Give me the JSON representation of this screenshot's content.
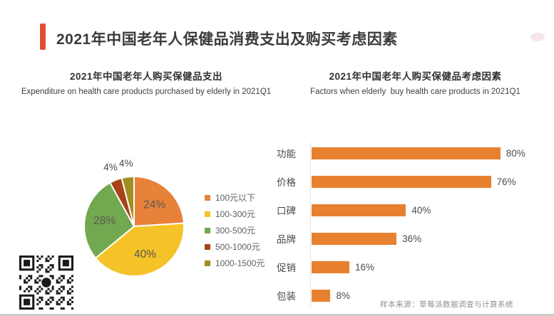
{
  "page": {
    "title": "2021年中国老年人保健品消费支出及购买考虑因素",
    "accent_color": "#DF5033",
    "source_note": "样本来源：草莓派数据调查与计算系统"
  },
  "left_section": {
    "title_cn": "2021年中国老年人购买保健品支出",
    "subtitle_en": "Expenditure on health care products purchased by elderly in 2021Q1"
  },
  "right_section": {
    "title_cn": "2021年中国老年人购买保健品考虑因素",
    "subtitle_en": "Factors when elderly  buy health care products in 2021Q1"
  },
  "chart_data": [
    {
      "type": "pie",
      "title": "2021年中国老年人购买保健品支出",
      "labels": [
        "100元以下",
        "100-300元",
        "300-500元",
        "500-1000元",
        "1000-1500元"
      ],
      "values": [
        24,
        40,
        28,
        4,
        4
      ],
      "value_labels": [
        "24%",
        "40%",
        "28%",
        "4%",
        "4%"
      ],
      "colors": [
        "#E8813A",
        "#F5C227",
        "#72A84F",
        "#A84318",
        "#A08E20"
      ],
      "start_angle": "top",
      "direction": "clockwise",
      "legend_position": "right"
    },
    {
      "type": "bar",
      "orientation": "horizontal",
      "title": "2021年中国老年人购买保健品考虑因素",
      "categories": [
        "功能",
        "价格",
        "口碑",
        "品牌",
        "促销",
        "包装"
      ],
      "values": [
        80,
        76,
        40,
        36,
        16,
        8
      ],
      "value_labels": [
        "80%",
        "76%",
        "40%",
        "36%",
        "16%",
        "8%"
      ],
      "bar_color": "#E8812F",
      "xlim": [
        0,
        100
      ],
      "grid": false,
      "legend_position": "none"
    }
  ]
}
